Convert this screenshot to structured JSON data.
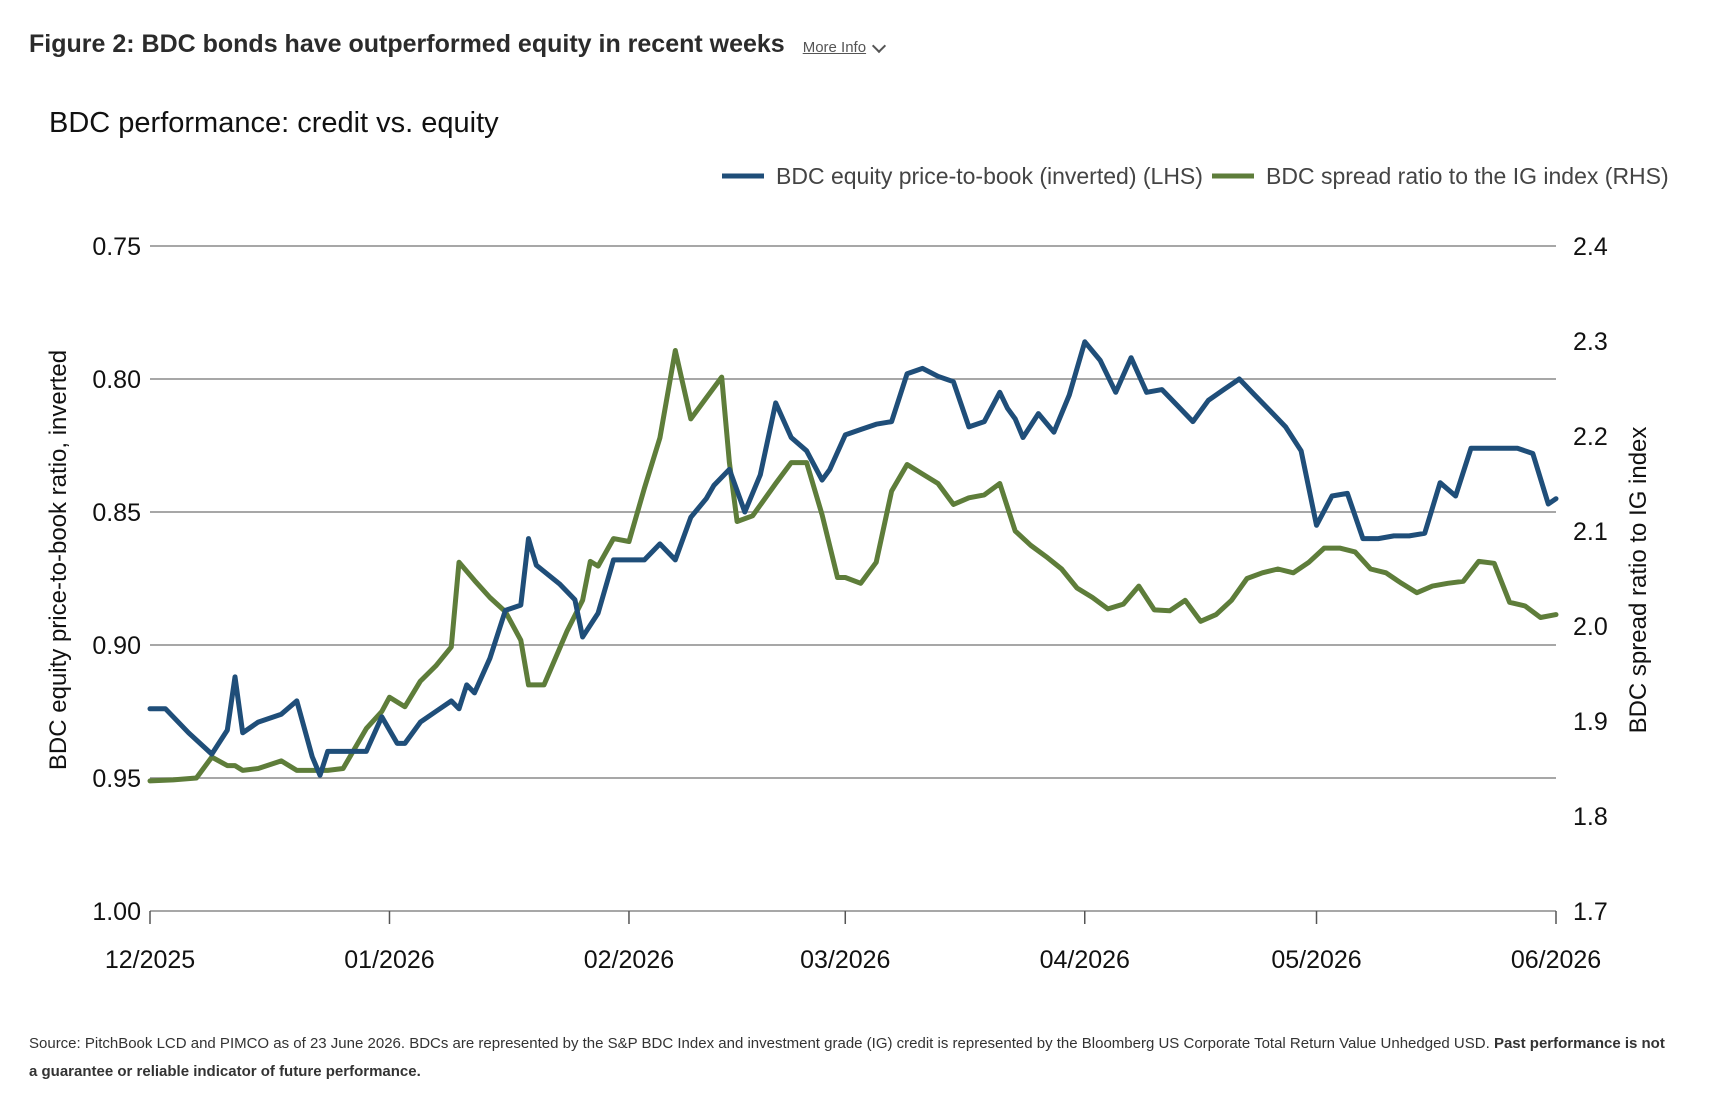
{
  "figure": {
    "title": "Figure 2: BDC bonds have outperformed equity in recent weeks",
    "more_info_label": "More Info"
  },
  "source": {
    "text": "Source: PitchBook LCD and PIMCO as of 23 June 2026. BDCs are represented by the S&P BDC Index and investment grade (IG) credit is represented by the Bloomberg US Corporate Total Return Value Unhedged USD.",
    "bold_text": "Past performance is not a guarantee or reliable indicator of future performance."
  },
  "colors": {
    "equity_series": "#1f4e79",
    "spread_series": "#5e7d3a",
    "gridline": "#8a8a8a"
  },
  "chart_data": {
    "type": "line",
    "title": "BDC performance: credit vs. equity",
    "grid": true,
    "legend_position": "top-right",
    "x_ticks": [
      "12/2025",
      "01/2026",
      "02/2026",
      "03/2026",
      "04/2026",
      "05/2026",
      "06/2026"
    ],
    "x_range": [
      "2025-12-01",
      "2026-06-01"
    ],
    "y_left": {
      "label": "BDC equity price-to-book ratio, inverted",
      "ticks": [
        "0.75",
        "0.80",
        "0.85",
        "0.90",
        "0.95",
        "1.00"
      ],
      "range": [
        0.75,
        1.0
      ],
      "inverted": true
    },
    "y_right": {
      "label": "BDC spread ratio to IG index",
      "ticks": [
        "2.4",
        "2.3",
        "2.2",
        "2.1",
        "2.0",
        "1.9",
        "1.8",
        "1.7"
      ],
      "range": [
        1.7,
        2.4
      ]
    },
    "series": [
      {
        "name": "BDC equity price-to-book (inverted) (LHS)",
        "axis": "left",
        "x": [
          "2025-12-01",
          "2025-12-03",
          "2025-12-06",
          "2025-12-09",
          "2025-12-11",
          "2025-12-12",
          "2025-12-13",
          "2025-12-15",
          "2025-12-18",
          "2025-12-20",
          "2025-12-22",
          "2025-12-23",
          "2025-12-24",
          "2025-12-25",
          "2025-12-29",
          "2025-12-31",
          "2026-01-02",
          "2026-01-03",
          "2026-01-05",
          "2026-01-07",
          "2026-01-09",
          "2026-01-10",
          "2026-01-11",
          "2026-01-12",
          "2026-01-14",
          "2026-01-16",
          "2026-01-18",
          "2026-01-19",
          "2026-01-20",
          "2026-01-23",
          "2026-01-25",
          "2026-01-26",
          "2026-01-28",
          "2026-01-30",
          "2026-02-01",
          "2026-02-03",
          "2026-02-05",
          "2026-02-07",
          "2026-02-09",
          "2026-02-11",
          "2026-02-12",
          "2026-02-14",
          "2026-02-16",
          "2026-02-18",
          "2026-02-20",
          "2026-02-22",
          "2026-02-24",
          "2026-02-26",
          "2026-02-27",
          "2026-03-01",
          "2026-03-03",
          "2026-03-05",
          "2026-03-07",
          "2026-03-09",
          "2026-03-11",
          "2026-03-13",
          "2026-03-15",
          "2026-03-17",
          "2026-03-19",
          "2026-03-21",
          "2026-03-22",
          "2026-03-23",
          "2026-03-24",
          "2026-03-26",
          "2026-03-28",
          "2026-03-30",
          "2026-04-01",
          "2026-04-03",
          "2026-04-05",
          "2026-04-07",
          "2026-04-09",
          "2026-04-11",
          "2026-04-13",
          "2026-04-15",
          "2026-04-17",
          "2026-04-19",
          "2026-04-21",
          "2026-04-23",
          "2026-04-25",
          "2026-04-27",
          "2026-04-29",
          "2026-05-01",
          "2026-05-03",
          "2026-05-05",
          "2026-05-07",
          "2026-05-09",
          "2026-05-11",
          "2026-05-13",
          "2026-05-15",
          "2026-05-17",
          "2026-05-19",
          "2026-05-21",
          "2026-05-23",
          "2026-05-25",
          "2026-05-27",
          "2026-05-29",
          "2026-05-31",
          "2026-06-01"
        ],
        "values": [
          0.924,
          0.924,
          0.933,
          0.941,
          0.932,
          0.912,
          0.933,
          0.929,
          0.926,
          0.921,
          0.942,
          0.949,
          0.94,
          0.94,
          0.94,
          0.927,
          0.937,
          0.937,
          0.929,
          0.925,
          0.921,
          0.924,
          0.915,
          0.918,
          0.905,
          0.887,
          0.885,
          0.86,
          0.87,
          0.877,
          0.883,
          0.897,
          0.888,
          0.868,
          0.868,
          0.868,
          0.862,
          0.868,
          0.852,
          0.845,
          0.84,
          0.834,
          0.85,
          0.836,
          0.809,
          0.822,
          0.827,
          0.838,
          0.834,
          0.821,
          0.819,
          0.817,
          0.816,
          0.798,
          0.796,
          0.799,
          0.801,
          0.818,
          0.816,
          0.805,
          0.811,
          0.815,
          0.822,
          0.813,
          0.82,
          0.806,
          0.786,
          0.793,
          0.805,
          0.792,
          0.805,
          0.804,
          0.81,
          0.816,
          0.808,
          0.804,
          0.8,
          0.806,
          0.812,
          0.818,
          0.827,
          0.855,
          0.844,
          0.843,
          0.86,
          0.86,
          0.859,
          0.859,
          0.858,
          0.839,
          0.844,
          0.826,
          0.826,
          0.826,
          0.826,
          0.828,
          0.847,
          0.845
        ]
      },
      {
        "name": "BDC spread ratio to the IG index (RHS)",
        "axis": "right",
        "x": [
          "2025-12-01",
          "2025-12-04",
          "2025-12-07",
          "2025-12-09",
          "2025-12-11",
          "2025-12-12",
          "2025-12-13",
          "2025-12-15",
          "2025-12-18",
          "2025-12-20",
          "2025-12-22",
          "2025-12-24",
          "2025-12-26",
          "2025-12-29",
          "2025-12-31",
          "2026-01-01",
          "2026-01-03",
          "2026-01-05",
          "2026-01-07",
          "2026-01-09",
          "2026-01-10",
          "2026-01-12",
          "2026-01-14",
          "2026-01-16",
          "2026-01-18",
          "2026-01-19",
          "2026-01-21",
          "2026-01-24",
          "2026-01-26",
          "2026-01-27",
          "2026-01-28",
          "2026-01-30",
          "2026-02-01",
          "2026-02-03",
          "2026-02-05",
          "2026-02-07",
          "2026-02-09",
          "2026-02-11",
          "2026-02-13",
          "2026-02-14",
          "2026-02-15",
          "2026-02-17",
          "2026-02-20",
          "2026-02-22",
          "2026-02-24",
          "2026-02-26",
          "2026-02-28",
          "2026-03-01",
          "2026-03-03",
          "2026-03-05",
          "2026-03-07",
          "2026-03-09",
          "2026-03-11",
          "2026-03-13",
          "2026-03-15",
          "2026-03-17",
          "2026-03-19",
          "2026-03-21",
          "2026-03-23",
          "2026-03-25",
          "2026-03-27",
          "2026-03-29",
          "2026-03-31",
          "2026-04-02",
          "2026-04-04",
          "2026-04-06",
          "2026-04-08",
          "2026-04-10",
          "2026-04-12",
          "2026-04-14",
          "2026-04-16",
          "2026-04-18",
          "2026-04-20",
          "2026-04-22",
          "2026-04-24",
          "2026-04-26",
          "2026-04-28",
          "2026-04-30",
          "2026-05-02",
          "2026-05-04",
          "2026-05-06",
          "2026-05-08",
          "2026-05-10",
          "2026-05-12",
          "2026-05-14",
          "2026-05-16",
          "2026-05-18",
          "2026-05-20",
          "2026-05-22",
          "2026-05-24",
          "2026-05-26",
          "2026-05-28",
          "2026-05-30",
          "2026-06-01"
        ],
        "values": [
          1.837,
          1.838,
          1.84,
          1.862,
          1.853,
          1.853,
          1.848,
          1.85,
          1.858,
          1.848,
          1.848,
          1.848,
          1.85,
          1.892,
          1.91,
          1.925,
          1.915,
          1.942,
          1.958,
          1.978,
          2.067,
          2.048,
          2.03,
          2.015,
          1.985,
          1.938,
          1.938,
          1.995,
          2.027,
          2.068,
          2.063,
          2.092,
          2.089,
          2.145,
          2.198,
          2.29,
          2.218,
          2.24,
          2.262,
          2.172,
          2.11,
          2.116,
          2.15,
          2.172,
          2.172,
          2.117,
          2.051,
          2.051,
          2.045,
          2.067,
          2.142,
          2.17,
          2.16,
          2.15,
          2.128,
          2.135,
          2.138,
          2.15,
          2.1,
          2.085,
          2.073,
          2.06,
          2.04,
          2.03,
          2.018,
          2.023,
          2.042,
          2.017,
          2.016,
          2.027,
          2.005,
          2.012,
          2.027,
          2.05,
          2.056,
          2.06,
          2.056,
          2.067,
          2.082,
          2.082,
          2.078,
          2.06,
          2.056,
          2.045,
          2.035,
          2.042,
          2.045,
          2.047,
          2.068,
          2.066,
          2.025,
          2.021,
          2.009,
          2.012
        ]
      }
    ]
  }
}
